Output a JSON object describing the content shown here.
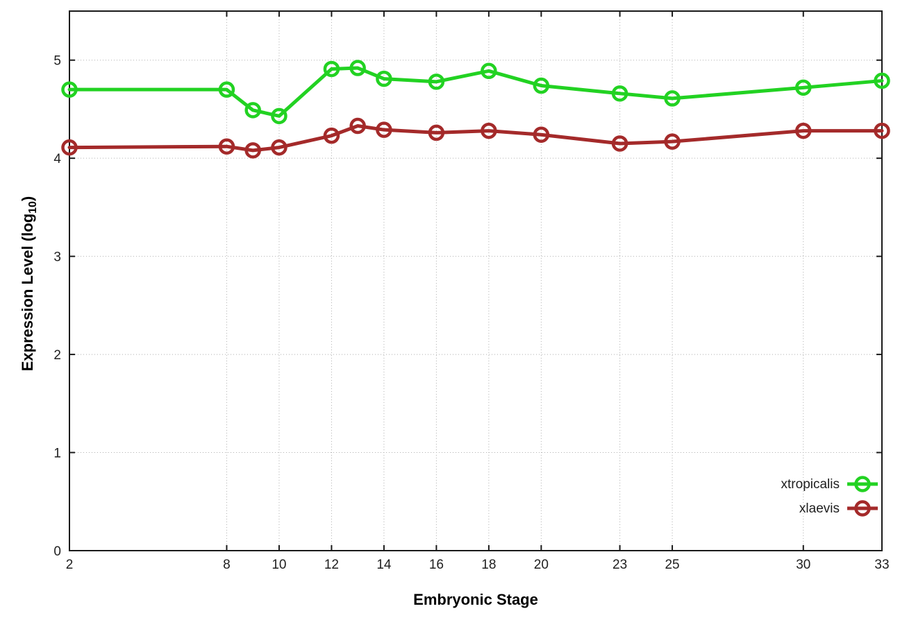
{
  "chart_data": {
    "type": "line",
    "xlabel": "Embryonic Stage",
    "ylabel_prefix": "Expression Level (log",
    "ylabel_sub": "10",
    "ylabel_suffix": ")",
    "x": [
      2,
      8,
      9,
      10,
      12,
      13,
      14,
      16,
      18,
      20,
      23,
      25,
      30,
      33
    ],
    "series": [
      {
        "name": "xtropicalis",
        "color": "#22d222",
        "values": [
          4.7,
          4.7,
          4.49,
          4.43,
          4.91,
          4.92,
          4.81,
          4.78,
          4.89,
          4.74,
          4.66,
          4.61,
          4.72,
          4.79
        ]
      },
      {
        "name": "xlaevis",
        "color": "#a42a2a",
        "values": [
          4.11,
          4.12,
          4.08,
          4.11,
          4.23,
          4.33,
          4.29,
          4.26,
          4.28,
          4.24,
          4.15,
          4.17,
          4.28,
          4.28
        ]
      }
    ],
    "x_ticks": [
      2,
      8,
      10,
      12,
      14,
      16,
      18,
      20,
      23,
      25,
      30,
      33
    ],
    "y_ticks": [
      0,
      1,
      2,
      3,
      4,
      5
    ],
    "xlim": [
      2,
      33
    ],
    "ylim": [
      0,
      5.5
    ],
    "grid": true,
    "grid_color": "#b0b0b0",
    "axis_color": "#1a1a1a",
    "marker": "open-circle",
    "legend_position": "inside-bottom-right"
  }
}
